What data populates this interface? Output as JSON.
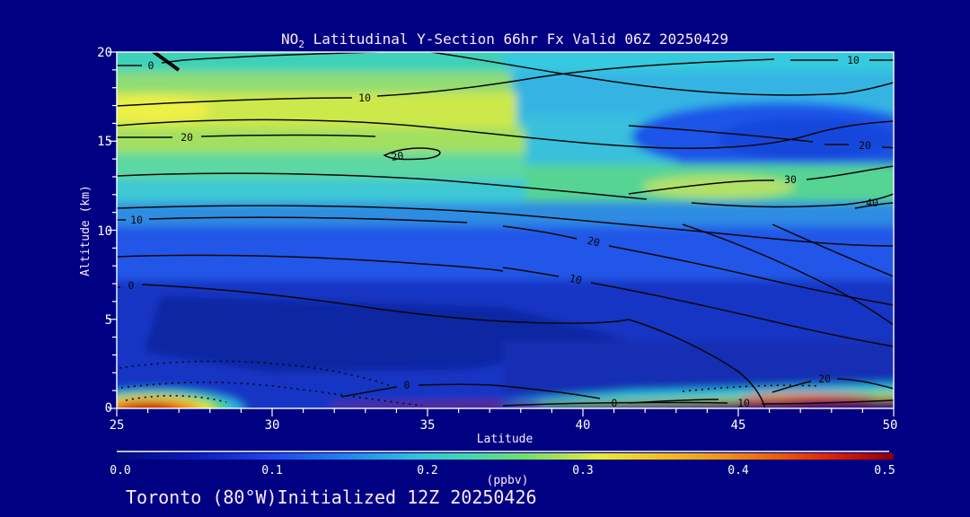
{
  "title": {
    "prefix": "NO",
    "sub": "2",
    "rest": " Latitudinal Y-Section 66hr  Fx Valid 06Z 20250429"
  },
  "footer": "Toronto (80°W)Initialized 12Z 20250426",
  "y_axis": {
    "label": "Altitude (km)",
    "ticks": [
      "20",
      "15",
      "10",
      "5",
      "0"
    ]
  },
  "x_axis": {
    "label": "Latitude",
    "ticks": [
      "25",
      "30",
      "35",
      "40",
      "45",
      "50"
    ]
  },
  "colorbar": {
    "units": "(ppbv)",
    "ticks": [
      "0.0",
      "0.1",
      "0.2",
      "0.3",
      "0.4",
      "0.5"
    ],
    "gradient": [
      "#000d78",
      "#0a1cb8",
      "#1f46e8",
      "#2387e8",
      "#2fc0dc",
      "#44d8aa",
      "#70dc6c",
      "#b4e44c",
      "#eaec32",
      "#f4c01c",
      "#f29410",
      "#ee5c04",
      "#e02000",
      "#8e0000"
    ]
  },
  "contour_labels": [
    {
      "t": "0"
    },
    {
      "t": "10"
    },
    {
      "t": "10"
    },
    {
      "t": "20"
    },
    {
      "t": "20"
    },
    {
      "t": "20"
    },
    {
      "t": "30"
    },
    {
      "t": "40"
    },
    {
      "t": "10"
    },
    {
      "t": "20"
    },
    {
      "t": "10"
    },
    {
      "t": "0"
    },
    {
      "t": "0"
    },
    {
      "t": "20"
    },
    {
      "t": "0"
    },
    {
      "t": "10"
    }
  ],
  "colors": {
    "page_bg": "#000082",
    "text_white": "#ffffff",
    "text_label": "#fde9fd",
    "contour_line": "#070707"
  },
  "chart_data": {
    "type": "heatmap",
    "subtype": "filled-contour-cross-section",
    "title": "NO2 Latitudinal Y-Section 66hr  Fx Valid 06Z 20250429",
    "xlabel": "Latitude",
    "ylabel": "Altitude (km)",
    "xlim": [
      25,
      50
    ],
    "ylim": [
      0,
      20
    ],
    "fill_units": "ppbv",
    "fill_range": [
      0.0,
      0.5
    ],
    "colorbar_ticks": [
      0.0,
      0.1,
      0.2,
      0.3,
      0.4,
      0.5
    ],
    "line_contour_levels": [
      0,
      10,
      20,
      30,
      40
    ],
    "line_contour_style": "solid black, dotted for negative values",
    "grid": {
      "lat": [
        25,
        30,
        35,
        40,
        45,
        50
      ],
      "alt_km": [
        0,
        2,
        4,
        6,
        8,
        10,
        12,
        14,
        16,
        18,
        20
      ],
      "no2_ppbv": [
        [
          0.45,
          0.07,
          0.09,
          0.5,
          0.5,
          0.5
        ],
        [
          0.08,
          0.07,
          0.07,
          0.08,
          0.08,
          0.09
        ],
        [
          0.07,
          0.06,
          0.07,
          0.08,
          0.09,
          0.09
        ],
        [
          0.08,
          0.07,
          0.08,
          0.09,
          0.1,
          0.1
        ],
        [
          0.11,
          0.1,
          0.1,
          0.12,
          0.13,
          0.13
        ],
        [
          0.15,
          0.15,
          0.14,
          0.16,
          0.18,
          0.2
        ],
        [
          0.22,
          0.21,
          0.19,
          0.21,
          0.26,
          0.27
        ],
        [
          0.28,
          0.27,
          0.24,
          0.2,
          0.22,
          0.25
        ],
        [
          0.31,
          0.3,
          0.26,
          0.22,
          0.14,
          0.13
        ],
        [
          0.29,
          0.28,
          0.26,
          0.24,
          0.18,
          0.16
        ],
        [
          0.26,
          0.26,
          0.26,
          0.25,
          0.24,
          0.24
        ]
      ]
    },
    "features": [
      "yellow-green stratospheric maximum ~15-18 km over lat 25-32 (~0.3 ppbv)",
      "green band ~11-14 km over lat 38-50 with yellow-green patch near lat 44-46",
      "dark blue minimum blob ~14-17 km over lat 42-50",
      "deep blue troposphere 2-9 km across all latitudes (~0.06-0.12 ppbv)",
      "surface hotspot at lat ~26, 0-1 km, red/orange core (~0.45-0.5 ppbv)",
      "thin dark-red surface layer from lat ~37 to 50 (~0.5 ppbv) with cyan-yellow fringe above",
      "dotted (negative) line contours in lower-left boundary layer"
    ],
    "legend_position": "horizontal colorbar below x-axis"
  }
}
